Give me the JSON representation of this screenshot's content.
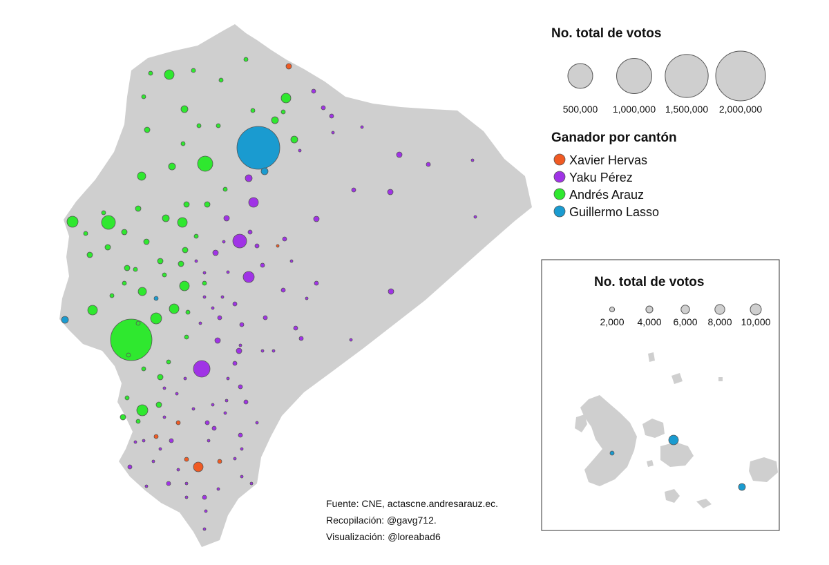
{
  "colors": {
    "land": "#cfcfcf",
    "bubble_outline": "#555555",
    "legend_bubble_fill": "#cfcfcf",
    "inset_frame": "#333333"
  },
  "size_legend": {
    "title": "No. total de votos",
    "items": [
      {
        "label": "500,000",
        "value": 500000
      },
      {
        "label": "1,000,000",
        "value": 1000000
      },
      {
        "label": "1,500,000",
        "value": 1500000
      },
      {
        "label": "2,000,000",
        "value": 2000000
      }
    ]
  },
  "winner_legend": {
    "title": "Ganador por cantón",
    "items": [
      {
        "label": "Xavier Hervas",
        "color": "#f05a23"
      },
      {
        "label": "Yaku Pérez",
        "color": "#a033e6"
      },
      {
        "label": "Andrés Arauz",
        "color": "#2fe82f"
      },
      {
        "label": "Guillermo Lasso",
        "color": "#1a9bd0"
      }
    ]
  },
  "inset": {
    "region": "Galápagos",
    "size_legend": {
      "title": "No. total de votos",
      "items": [
        {
          "label": "2,000",
          "value": 2000
        },
        {
          "label": "4,000",
          "value": 4000
        },
        {
          "label": "6,000",
          "value": 6000
        },
        {
          "label": "8,000",
          "value": 8000
        },
        {
          "label": "10,000",
          "value": 10000
        }
      ]
    }
  },
  "credits": {
    "source": "Fuente: CNE, actascne.andresarauz.ec.",
    "compilation": "Recopilación: @gavg712.",
    "visualization": "Visualización: @loreabad6"
  }
}
